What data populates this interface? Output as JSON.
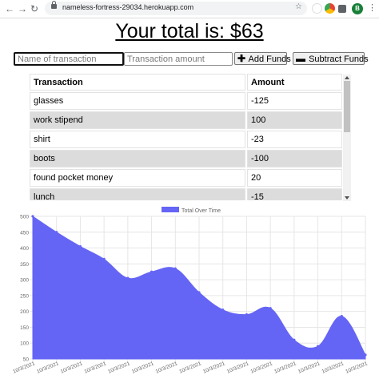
{
  "browser": {
    "url": "nameless-fortress-29034.herokuapp.com",
    "profile_initial": "B"
  },
  "header": {
    "total_text": "Your total is: $63"
  },
  "form": {
    "name_placeholder": "Name of transaction",
    "amount_placeholder": "Transaction amount",
    "add_label": "Add Funds",
    "subtract_label": "Subtract Funds"
  },
  "table": {
    "headers": [
      "Transaction",
      "Amount"
    ],
    "rows": [
      {
        "name": "glasses",
        "amount": "-125"
      },
      {
        "name": "work stipend",
        "amount": "100"
      },
      {
        "name": "shirt",
        "amount": "-23"
      },
      {
        "name": "boots",
        "amount": "-100"
      },
      {
        "name": "found pocket money",
        "amount": "20"
      },
      {
        "name": "lunch",
        "amount": "-15"
      }
    ]
  },
  "chart_data": {
    "type": "area",
    "legend": "Total Over Time",
    "legend_position": "top-center",
    "fill_color": "#6565f5",
    "grid": true,
    "ylim": [
      50,
      500
    ],
    "yticks": [
      50,
      100,
      150,
      200,
      250,
      300,
      350,
      400,
      450,
      500
    ],
    "x": [
      "10/3/2021",
      "10/3/2021",
      "10/3/2021",
      "10/3/2021",
      "10/3/2021",
      "10/3/2021",
      "10/3/2021",
      "10/3/2021",
      "10/3/2021",
      "10/3/2021",
      "10/3/2021",
      "10/3/2021",
      "10/3/2021",
      "10/3/2021",
      "10/3/2021"
    ],
    "values": [
      500,
      450,
      405,
      365,
      305,
      325,
      335,
      260,
      205,
      190,
      210,
      110,
      90,
      185,
      63
    ]
  }
}
